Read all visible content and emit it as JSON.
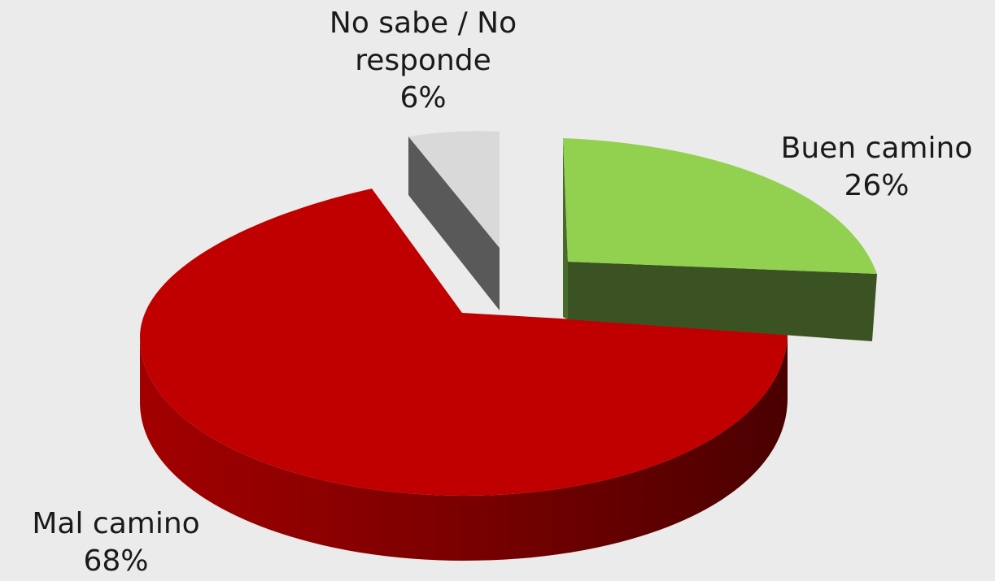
{
  "chart_data": {
    "type": "pie",
    "style": "3d-exploded",
    "slices": [
      {
        "name": "Buen camino",
        "value": 26,
        "label": "26%",
        "color": "#92d050"
      },
      {
        "name": "Mal camino",
        "value": 68,
        "label": "68%",
        "color": "#c00000"
      },
      {
        "name": "No sabe / No responde",
        "value": 6,
        "label": "6%",
        "color": "#d9d9d9"
      }
    ],
    "label_lines": {
      "nsnr": [
        "No sabe / No",
        "responde"
      ]
    }
  }
}
